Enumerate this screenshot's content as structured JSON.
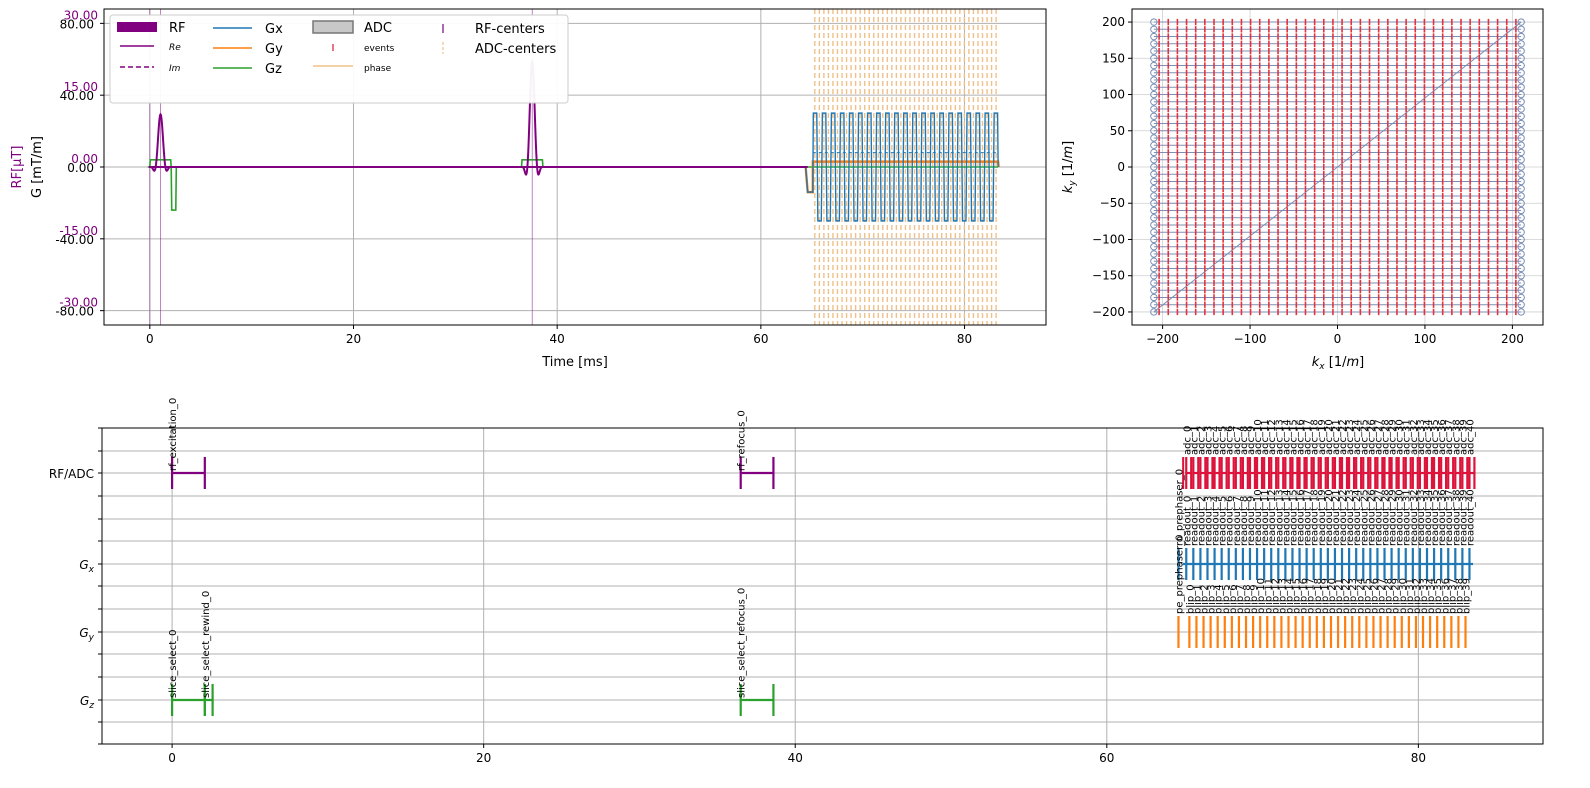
{
  "colors": {
    "rf": "#800080",
    "gx": "#1f77b4",
    "gy": "#ff7f0e",
    "gz": "#2ca02c",
    "adc_event": "#dc143c",
    "adc_phase": "#f0c08a",
    "kspace_traj": "#7a8fb5",
    "kspace_adc": "#e8303c",
    "grid": "#b0b0b0",
    "axis": "#000000"
  },
  "chart_data": [
    {
      "type": "line",
      "title": "",
      "xlabel": "Time [ms]",
      "ylabel_left_outer": "RF[μT]",
      "ylabel_left_inner": "G [mT/m]",
      "xlim": [
        -4.5,
        88
      ],
      "x_ticks": [
        "0",
        "20",
        "40",
        "60",
        "80"
      ],
      "x_tick_values": [
        0,
        20,
        40,
        60,
        80
      ],
      "grad_ylim": [
        -88,
        88
      ],
      "grad_ticks": [
        "-80.00",
        "-40.00",
        "0.00",
        "40.00",
        "80.00"
      ],
      "grad_tick_values": [
        -80,
        -40,
        0,
        40,
        80
      ],
      "rf_ylim": [
        -33,
        33
      ],
      "rf_ticks": [
        "-30.00",
        "-15.00",
        "0.00",
        "15.00",
        "30.00"
      ],
      "rf_tick_values": [
        -30,
        -15,
        0,
        15,
        30
      ],
      "grid": true,
      "legend_position": "top-left",
      "legend": {
        "col1": [
          "RF",
          "Re",
          "Im"
        ],
        "col2": [
          "Gx",
          "Gy",
          "Gz"
        ],
        "col3": [
          "ADC",
          "events",
          "phase"
        ],
        "col4": [
          "RF-centers",
          "ADC-centers"
        ]
      },
      "rf_pulses": [
        {
          "name": "excitation",
          "start": 0,
          "end": 2.1,
          "center": 1.05,
          "peak_uT": 11
        },
        {
          "name": "refocus",
          "start": 36.5,
          "end": 38.6,
          "center": 37.55,
          "peak_uT": 22
        }
      ],
      "gz_blocks": [
        {
          "name": "slice_select_0",
          "start": 0,
          "end": 2.1,
          "amp_mT_m": 4
        },
        {
          "name": "slice_select_rewind_0",
          "start": 2.1,
          "end": 2.6,
          "amp_mT_m": -24
        },
        {
          "name": "slice_select_refocus_0",
          "start": 36.5,
          "end": 38.6,
          "amp_mT_m": 4
        }
      ],
      "gx_readout": {
        "prephaser_start": 64.6,
        "prephaser_end": 65.1,
        "prephaser_amp": -14,
        "start": 65.1,
        "end": 83.3,
        "lobes": 41,
        "amp_mT_m": 30
      },
      "gy_blips": {
        "prephaser_start": 64.6,
        "prephaser_end": 65.1,
        "prephaser_amp": -14,
        "start": 65.1,
        "end": 83.3,
        "count": 40,
        "amp_mT_m": 3
      },
      "adc_centers": {
        "start": 65.3,
        "end": 83.1,
        "count": 41
      },
      "rf_centers": [
        1.05,
        37.55
      ]
    },
    {
      "type": "scatter",
      "title": "",
      "xlabel": "k_x [1/m]",
      "ylabel": "k_y [1/m]",
      "xlim": [
        -235,
        235
      ],
      "ylim": [
        -218,
        218
      ],
      "x_ticks": [
        "−200",
        "−100",
        "0",
        "100",
        "200"
      ],
      "x_tick_values": [
        -200,
        -100,
        0,
        100,
        200
      ],
      "y_ticks": [
        "−200",
        "−150",
        "−100",
        "−50",
        "0",
        "50",
        "100",
        "150",
        "200"
      ],
      "y_tick_values": [
        -200,
        -150,
        -100,
        -50,
        0,
        50,
        100,
        150,
        200
      ],
      "grid": true,
      "kx_range": [
        -210,
        210
      ],
      "ky_range": [
        -200,
        200
      ],
      "lines": 41,
      "points_per_line": 40
    },
    {
      "type": "timeline",
      "title": "",
      "xlabel": "",
      "xlim": [
        -4.5,
        88
      ],
      "x_ticks": [
        "0",
        "20",
        "40",
        "60",
        "80"
      ],
      "x_tick_values": [
        0,
        20,
        40,
        60,
        80
      ],
      "rows": [
        "RF/ADC",
        "G_x",
        "G_y",
        "G_z"
      ],
      "grid": true,
      "rf_events": [
        {
          "label": "rf_excitation_0",
          "start": 0,
          "end": 2.1
        },
        {
          "label": "rf_refocus_0",
          "start": 36.5,
          "end": 38.6
        }
      ],
      "adc_events": {
        "label_prefix": "adc_",
        "count": 41,
        "start": 65.1,
        "step": 0.4545
      },
      "gx_events": {
        "prephaser_label": "ro_prephaser_0",
        "prephaser_time": 64.6,
        "label_prefix": "readout_",
        "count": 41,
        "start": 65.1,
        "step": 0.4545
      },
      "gy_events": {
        "prephaser_label": "pe_prephaser_0",
        "prephaser_time": 64.6,
        "label_prefix": "blip_",
        "count": 40,
        "start": 65.3,
        "step": 0.4545
      },
      "gz_events": [
        {
          "label": "slice_select_0",
          "start": 0,
          "end": 2.1
        },
        {
          "label": "slice_select_rewind_0",
          "start": 2.1,
          "end": 2.6
        },
        {
          "label": "slice_select_refocus_0",
          "start": 36.5,
          "end": 38.6
        }
      ]
    }
  ]
}
